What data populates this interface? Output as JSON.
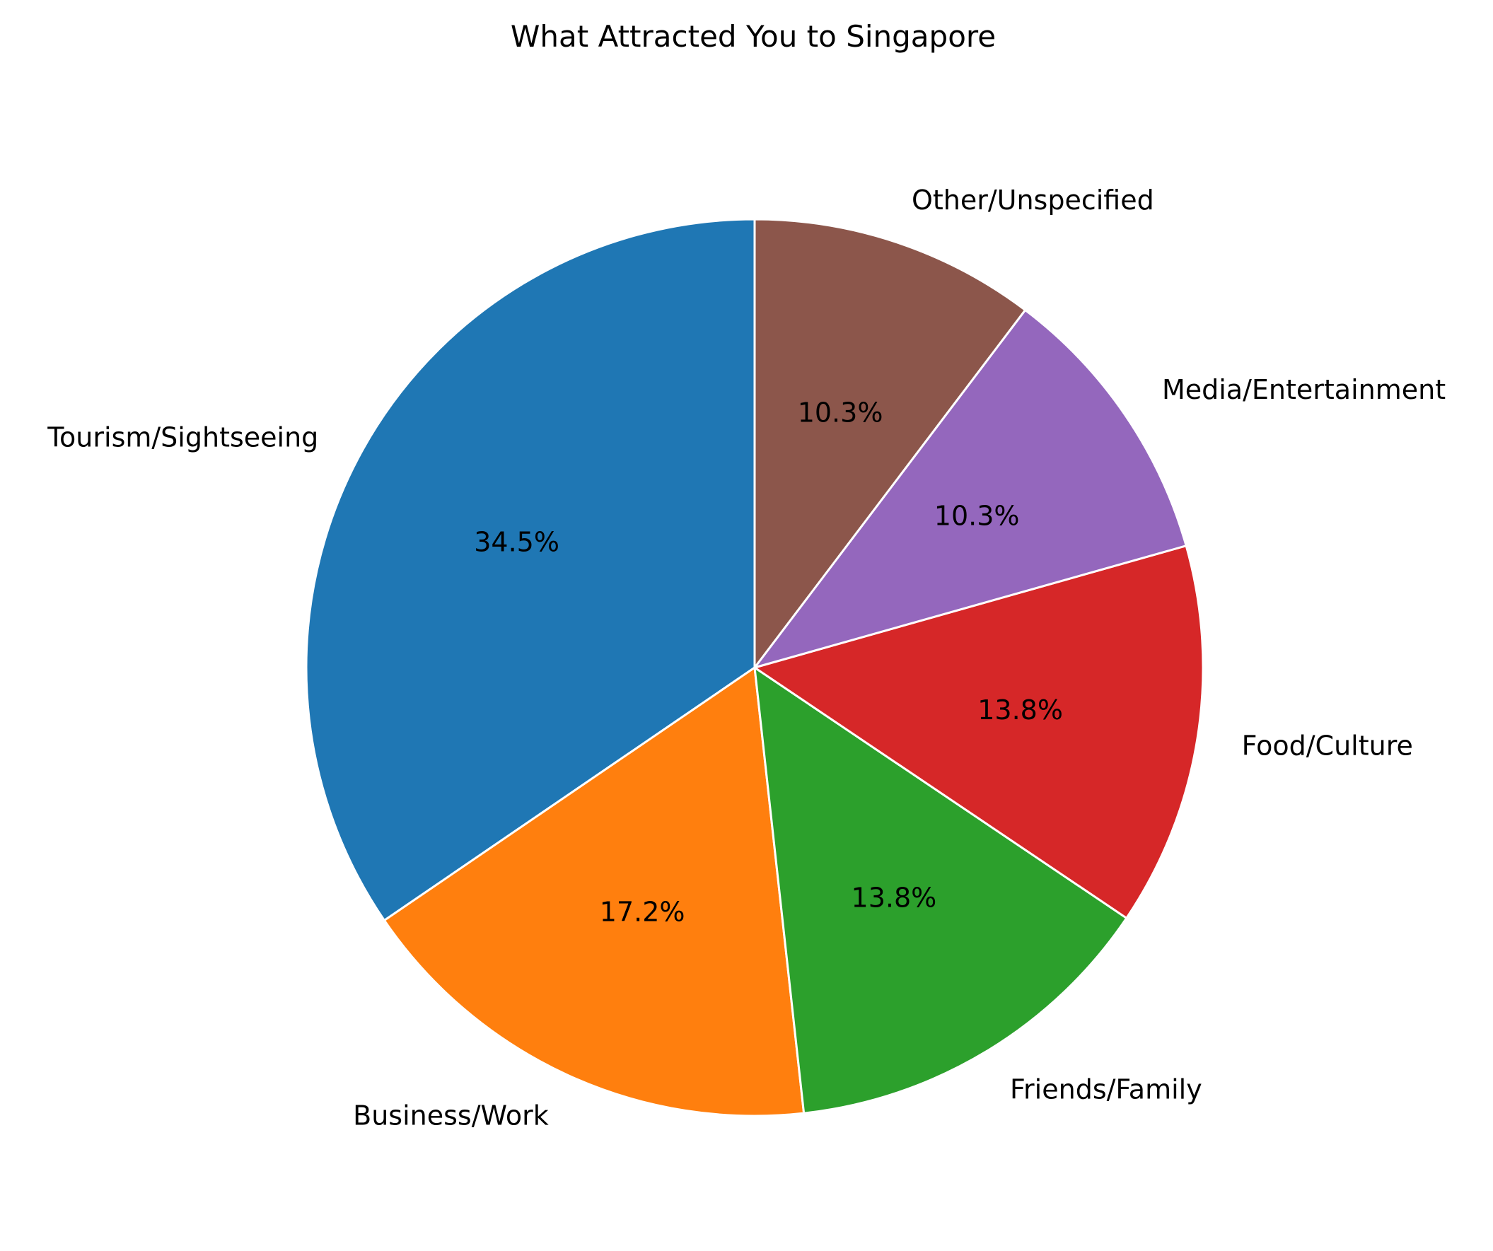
{
  "chart_data": {
    "type": "pie",
    "title": "What Attracted You to Singapore",
    "slices": [
      {
        "label": "Tourism/Sightseeing",
        "value": 34.5,
        "pct_label": "34.5%",
        "color": "#1f77b4"
      },
      {
        "label": "Business/Work",
        "value": 17.2,
        "pct_label": "17.2%",
        "color": "#ff7f0e"
      },
      {
        "label": "Friends/Family",
        "value": 13.8,
        "pct_label": "13.8%",
        "color": "#2ca02c"
      },
      {
        "label": "Food/Culture",
        "value": 13.8,
        "pct_label": "13.8%",
        "color": "#d62728"
      },
      {
        "label": "Media/Entertainment",
        "value": 10.3,
        "pct_label": "10.3%",
        "color": "#9467bd"
      },
      {
        "label": "Other/Unspecified",
        "value": 10.3,
        "pct_label": "10.3%",
        "color": "#8c564b"
      }
    ],
    "start_angle_deg": 90,
    "direction": "counterclockwise",
    "edge_color": "#ffffff",
    "legend": "none"
  }
}
